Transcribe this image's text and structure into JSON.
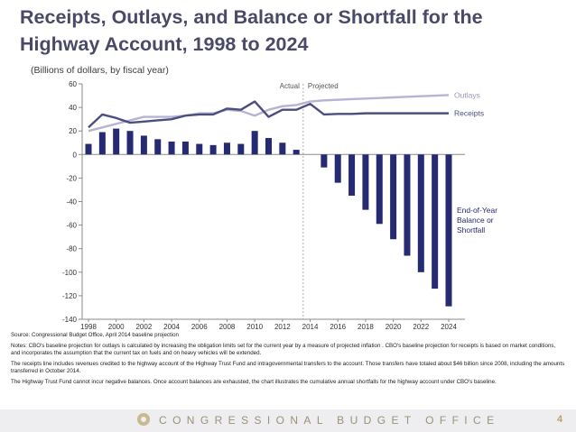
{
  "header": {
    "title": "Receipts, Outlays, and Balance or Shortfall for the Highway Account, 1998 to 2024",
    "subtitle": "(Billions of dollars, by fiscal year)"
  },
  "chart_data": {
    "type": "bar",
    "title": "Receipts, Outlays, and Balance or Shortfall for the Highway Account, 1998 to 2024",
    "ylabel": "Billions of dollars, by fiscal year",
    "ylim": [
      -140,
      60
    ],
    "yticks": [
      60,
      40,
      20,
      0,
      -20,
      -40,
      -60,
      -80,
      -100,
      -120,
      -140
    ],
    "xticks": [
      1998,
      2000,
      2002,
      2004,
      2006,
      2008,
      2010,
      2012,
      2014,
      2016,
      2018,
      2020,
      2022,
      2024
    ],
    "years": [
      1998,
      1999,
      2000,
      2001,
      2002,
      2003,
      2004,
      2005,
      2006,
      2007,
      2008,
      2009,
      2010,
      2011,
      2012,
      2013,
      2014,
      2015,
      2016,
      2017,
      2018,
      2019,
      2020,
      2021,
      2022,
      2023,
      2024
    ],
    "annotations": {
      "actual": "Actual",
      "projected": "Projected",
      "divider_year": 2013.5
    },
    "series": [
      {
        "name": "Outlays",
        "type": "line",
        "color": "#b7b3d3",
        "values": [
          20,
          23,
          26,
          29,
          32,
          32,
          32,
          33,
          35,
          35,
          38,
          37,
          33,
          38,
          41,
          42,
          45,
          46,
          46.5,
          47,
          47.5,
          48,
          48.5,
          49,
          49.5,
          50,
          50.5
        ]
      },
      {
        "name": "Receipts",
        "type": "line",
        "color": "#4a4f7f",
        "values": [
          23,
          34,
          31,
          27,
          28,
          29,
          30,
          33,
          34,
          34,
          39,
          38,
          45,
          32,
          38,
          38,
          43,
          34,
          34.5,
          34.5,
          35,
          35,
          35,
          35,
          35,
          35,
          35
        ]
      },
      {
        "name": "End-of-Year Balance or Shortfall",
        "type": "bar",
        "color": "#262a73",
        "values": [
          9,
          19,
          22,
          20,
          16,
          13,
          11,
          11,
          9,
          8,
          10,
          9,
          20,
          14,
          10,
          4,
          null,
          -11,
          -24,
          -35,
          -47,
          -59,
          -72,
          -86,
          -100,
          -114,
          -129
        ]
      }
    ],
    "labels": {
      "outlays": "Outlays",
      "receipts": "Receipts",
      "balance_lines": [
        "End-of-Year",
        "Balance or",
        "Shortfall"
      ]
    }
  },
  "notes": {
    "source": "Source: Congressional Budget Office, April 2014 baseline projection",
    "note1": "Notes:  CBO's  baseline projection for outlays is calculated by increasing the obligation limits set for the current year by a measure of projected inflation .  CBO's baseline projection for receipts is based on market conditions, and incorporates the assumption that the current tax on fuels and on heavy vehicles will be extended.",
    "note2": "The receipts line includes revenues credited to the highway account of the Highway Trust Fund and intragovernmental transfers to the account. Those transfers have totaled about $46 billion since 2008, including the amounts transferred in October 2014.",
    "note3": "The Highway Trust Fund cannot incur negative balances.  Once account balances are exhausted, the chart illustrates the cumulative annual shortfalls for the highway account under CBO's baseline."
  },
  "footer": {
    "org": "CONGRESSIONAL BUDGET OFFICE",
    "page_number": "4"
  }
}
